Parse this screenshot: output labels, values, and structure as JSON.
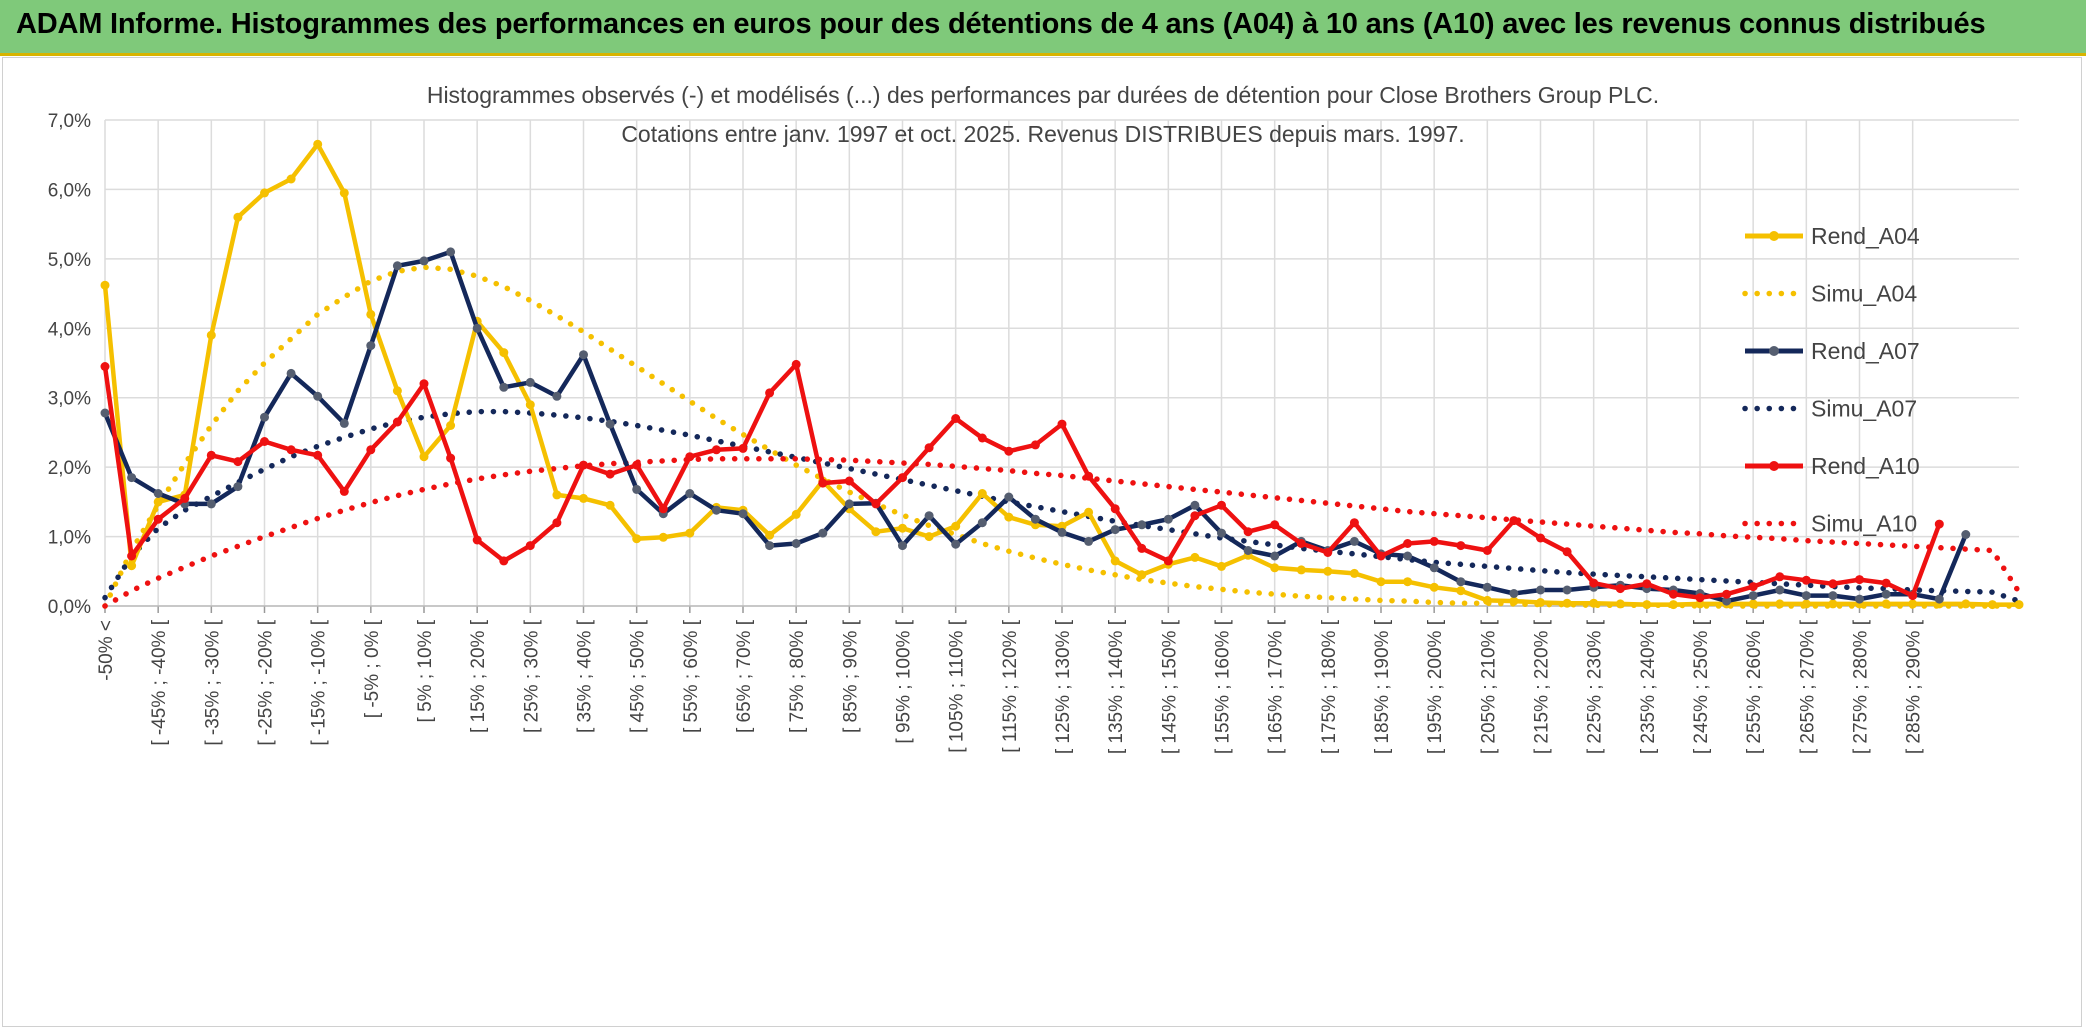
{
  "banner": {
    "title": "ADAM Informe. Histogrammes des performances en euros pour des détentions de 4 ans (A04) à 10 ans (A10) avec les revenus connus distribués"
  },
  "chart_data": {
    "type": "line",
    "title": "Histogrammes observés (-) et modélisés (...) des performances par durées de détention pour Close Brothers Group PLC.",
    "subtitle": "Cotations entre janv. 1997 et oct. 2025. Revenus DISTRIBUES depuis mars. 1997.",
    "xlabel": "",
    "ylabel": "",
    "ylim": [
      0,
      7
    ],
    "yticks": [
      "0,0%",
      "1,0%",
      "2,0%",
      "3,0%",
      "4,0%",
      "5,0%",
      "6,0%",
      "7,0%"
    ],
    "grid": true,
    "legend_position": "right",
    "x_tick_labels": [
      "-50% <",
      "[ -45% ; -40% [",
      "[ -35% ; -30% [",
      "[ -25% ; -20% [",
      "[ -15% ; -10% [",
      "[ -5% ; 0% [",
      "[ 5% ; 10% [",
      "[ 15% ; 20% [",
      "[ 25% ; 30% [",
      "[ 35% ; 40% [",
      "[ 45% ; 50% [",
      "[ 55% ; 60% [",
      "[ 65% ; 70% [",
      "[ 75% ; 80% [",
      "[ 85% ; 90% [",
      "[ 95% ; 100% [",
      "[ 105% ; 110% [",
      "[ 115% ; 120% [",
      "[ 125% ; 130% [",
      "[ 135% ; 140% [",
      "[ 145% ; 150% [",
      "[ 155% ; 160% [",
      "[ 165% ; 170% [",
      "[ 175% ; 180% [",
      "[ 185% ; 190% [",
      "[ 195% ; 200% [",
      "[ 205% ; 210% [",
      "[ 215% ; 220% [",
      "[ 225% ; 230% [",
      "[ 235% ; 240% [",
      "[ 245% ; 250% [",
      "[ 255% ; 260% [",
      "[ 265% ; 270% [",
      "[ 275% ; 280% [",
      "[ 285% ; 290% ["
    ],
    "series": [
      {
        "name": "Rend_A04",
        "style": "solid",
        "color": "#f5c000",
        "values": [
          4.62,
          0.58,
          1.5,
          1.6,
          3.9,
          5.6,
          5.95,
          6.15,
          6.65,
          5.95,
          4.2,
          3.1,
          2.15,
          2.6,
          4.1,
          3.65,
          2.9,
          1.6,
          1.55,
          1.45,
          0.97,
          0.99,
          1.05,
          1.42,
          1.38,
          1.02,
          1.32,
          1.8,
          1.4,
          1.07,
          1.12,
          1.0,
          1.15,
          1.62,
          1.28,
          1.17,
          1.15,
          1.35,
          0.65,
          0.45,
          0.6,
          0.7,
          0.57,
          0.73,
          0.55,
          0.52,
          0.5,
          0.47,
          0.35,
          0.35,
          0.27,
          0.22,
          0.08,
          0.07,
          0.05,
          0.04,
          0.04,
          0.03,
          0.02,
          0.02,
          0.03,
          0.03,
          0.03,
          0.03,
          0.03,
          0.03,
          0.03,
          0.03,
          0.03,
          0.03,
          0.03,
          0.02,
          0.02
        ]
      },
      {
        "name": "Simu_A04",
        "style": "dotted",
        "color": "#f5c000",
        "values": [
          0.0,
          0.8,
          1.45,
          2.05,
          2.6,
          3.1,
          3.5,
          3.85,
          4.2,
          4.45,
          4.68,
          4.82,
          4.88,
          4.85,
          4.75,
          4.6,
          4.4,
          4.18,
          3.95,
          3.7,
          3.45,
          3.2,
          2.95,
          2.7,
          2.47,
          2.25,
          2.03,
          1.83,
          1.64,
          1.47,
          1.31,
          1.16,
          1.03,
          0.9,
          0.79,
          0.69,
          0.6,
          0.52,
          0.45,
          0.38,
          0.33,
          0.28,
          0.24,
          0.2,
          0.17,
          0.14,
          0.12,
          0.1,
          0.08,
          0.07,
          0.05,
          0.04,
          0.04,
          0.03,
          0.02,
          0.02,
          0.01,
          0.01,
          0.01,
          0.01,
          0.0,
          0.0,
          0.0,
          0.0,
          0.0,
          0.0,
          0.0,
          0.0,
          0.0,
          0.0,
          0.0,
          0.0,
          0.0
        ]
      },
      {
        "name": "Rend_A07",
        "style": "solid",
        "color": "#14285a",
        "values": [
          2.78,
          1.85,
          1.62,
          1.47,
          1.47,
          1.72,
          2.72,
          3.35,
          3.02,
          2.63,
          3.75,
          4.9,
          4.97,
          5.1,
          4.0,
          3.15,
          3.22,
          3.02,
          3.62,
          2.62,
          1.68,
          1.33,
          1.62,
          1.38,
          1.33,
          0.87,
          0.9,
          1.05,
          1.47,
          1.48,
          0.87,
          1.3,
          0.89,
          1.2,
          1.57,
          1.25,
          1.06,
          0.93,
          1.1,
          1.17,
          1.25,
          1.45,
          1.05,
          0.8,
          0.72,
          0.93,
          0.8,
          0.93,
          0.75,
          0.72,
          0.55,
          0.35,
          0.27,
          0.18,
          0.23,
          0.23,
          0.27,
          0.3,
          0.25,
          0.23,
          0.18,
          0.07,
          0.15,
          0.23,
          0.15,
          0.15,
          0.1,
          0.17,
          0.17,
          0.1,
          1.03
        ]
      },
      {
        "name": "Simu_A07",
        "style": "dotted",
        "color": "#14285a",
        "values": [
          0.12,
          0.72,
          1.12,
          1.38,
          1.58,
          1.78,
          1.97,
          2.15,
          2.3,
          2.43,
          2.55,
          2.65,
          2.72,
          2.77,
          2.8,
          2.8,
          2.78,
          2.75,
          2.71,
          2.66,
          2.6,
          2.53,
          2.46,
          2.38,
          2.3,
          2.22,
          2.14,
          2.06,
          1.98,
          1.9,
          1.82,
          1.74,
          1.66,
          1.58,
          1.5,
          1.43,
          1.36,
          1.29,
          1.22,
          1.16,
          1.1,
          1.04,
          0.98,
          0.93,
          0.88,
          0.83,
          0.79,
          0.75,
          0.71,
          0.67,
          0.63,
          0.6,
          0.57,
          0.54,
          0.51,
          0.48,
          0.46,
          0.44,
          0.42,
          0.4,
          0.38,
          0.36,
          0.34,
          0.32,
          0.3,
          0.28,
          0.26,
          0.25,
          0.23,
          0.22,
          0.21,
          0.2,
          0.07
        ]
      },
      {
        "name": "Rend_A10",
        "style": "solid",
        "color": "#ee1111",
        "values": [
          3.45,
          0.72,
          1.25,
          1.55,
          2.17,
          2.08,
          2.37,
          2.25,
          2.17,
          1.65,
          2.25,
          2.65,
          3.2,
          2.13,
          0.95,
          0.65,
          0.87,
          1.2,
          2.03,
          1.9,
          2.03,
          1.4,
          2.15,
          2.25,
          2.27,
          3.07,
          3.48,
          1.77,
          1.8,
          1.47,
          1.85,
          2.28,
          2.7,
          2.42,
          2.23,
          2.32,
          2.62,
          1.87,
          1.4,
          0.83,
          0.65,
          1.3,
          1.45,
          1.07,
          1.17,
          0.9,
          0.77,
          1.2,
          0.72,
          0.9,
          0.93,
          0.87,
          0.8,
          1.23,
          0.98,
          0.78,
          0.33,
          0.25,
          0.32,
          0.17,
          0.12,
          0.17,
          0.28,
          0.42,
          0.37,
          0.32,
          0.38,
          0.33,
          0.15,
          1.18
        ]
      },
      {
        "name": "Simu_A10",
        "style": "dotted",
        "color": "#ee1111",
        "values": [
          0.0,
          0.22,
          0.4,
          0.56,
          0.72,
          0.86,
          1.0,
          1.13,
          1.26,
          1.38,
          1.49,
          1.59,
          1.68,
          1.76,
          1.83,
          1.89,
          1.94,
          1.98,
          2.02,
          2.05,
          2.07,
          2.09,
          2.11,
          2.12,
          2.12,
          2.12,
          2.12,
          2.11,
          2.1,
          2.08,
          2.06,
          2.04,
          2.01,
          1.98,
          1.95,
          1.91,
          1.88,
          1.84,
          1.8,
          1.76,
          1.72,
          1.68,
          1.64,
          1.6,
          1.56,
          1.52,
          1.48,
          1.44,
          1.4,
          1.36,
          1.33,
          1.3,
          1.27,
          1.24,
          1.21,
          1.18,
          1.15,
          1.12,
          1.09,
          1.06,
          1.04,
          1.01,
          0.99,
          0.97,
          0.94,
          0.92,
          0.9,
          0.88,
          0.86,
          0.84,
          0.82,
          0.8,
          0.2
        ]
      }
    ]
  }
}
